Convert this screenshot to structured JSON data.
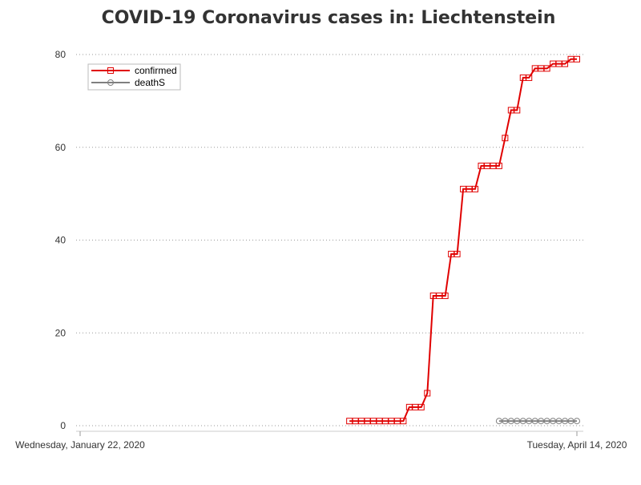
{
  "chart_data": {
    "type": "line",
    "title": "COVID-19 Coronavirus cases in: Liechtenstein",
    "xlabel": "",
    "ylabel": "",
    "x_range": [
      "2020-01-22",
      "2020-04-14"
    ],
    "x_tick_labels": [
      "Wednesday, January 22, 2020",
      "Tuesday, April 14, 2020"
    ],
    "ylim": [
      0,
      80
    ],
    "y_ticks": [
      0,
      20,
      40,
      60,
      80
    ],
    "grid": "horizontal dotted",
    "legend": {
      "placement": "top-left",
      "entries": [
        "confirmed",
        "deathS"
      ]
    },
    "series": [
      {
        "name": "confirmed",
        "color": "#e00000",
        "marker": "square",
        "points": [
          {
            "x": "2020-03-07",
            "y": 1
          },
          {
            "x": "2020-03-08",
            "y": 1
          },
          {
            "x": "2020-03-09",
            "y": 1
          },
          {
            "x": "2020-03-10",
            "y": 1
          },
          {
            "x": "2020-03-11",
            "y": 1
          },
          {
            "x": "2020-03-12",
            "y": 1
          },
          {
            "x": "2020-03-13",
            "y": 1
          },
          {
            "x": "2020-03-14",
            "y": 1
          },
          {
            "x": "2020-03-15",
            "y": 1
          },
          {
            "x": "2020-03-16",
            "y": 1
          },
          {
            "x": "2020-03-17",
            "y": 4
          },
          {
            "x": "2020-03-18",
            "y": 4
          },
          {
            "x": "2020-03-19",
            "y": 4
          },
          {
            "x": "2020-03-20",
            "y": 7
          },
          {
            "x": "2020-03-21",
            "y": 28
          },
          {
            "x": "2020-03-22",
            "y": 28
          },
          {
            "x": "2020-03-23",
            "y": 28
          },
          {
            "x": "2020-03-24",
            "y": 37
          },
          {
            "x": "2020-03-25",
            "y": 37
          },
          {
            "x": "2020-03-26",
            "y": 51
          },
          {
            "x": "2020-03-27",
            "y": 51
          },
          {
            "x": "2020-03-28",
            "y": 51
          },
          {
            "x": "2020-03-29",
            "y": 56
          },
          {
            "x": "2020-03-30",
            "y": 56
          },
          {
            "x": "2020-03-31",
            "y": 56
          },
          {
            "x": "2020-04-01",
            "y": 56
          },
          {
            "x": "2020-04-02",
            "y": 62
          },
          {
            "x": "2020-04-03",
            "y": 68
          },
          {
            "x": "2020-04-04",
            "y": 68
          },
          {
            "x": "2020-04-05",
            "y": 75
          },
          {
            "x": "2020-04-06",
            "y": 75
          },
          {
            "x": "2020-04-07",
            "y": 77
          },
          {
            "x": "2020-04-08",
            "y": 77
          },
          {
            "x": "2020-04-09",
            "y": 77
          },
          {
            "x": "2020-04-10",
            "y": 78
          },
          {
            "x": "2020-04-11",
            "y": 78
          },
          {
            "x": "2020-04-12",
            "y": 78
          },
          {
            "x": "2020-04-13",
            "y": 79
          },
          {
            "x": "2020-04-14",
            "y": 79
          }
        ]
      },
      {
        "name": "deaths",
        "color": "#808080",
        "marker": "circle",
        "points": [
          {
            "x": "2020-04-01",
            "y": 1
          },
          {
            "x": "2020-04-02",
            "y": 1
          },
          {
            "x": "2020-04-03",
            "y": 1
          },
          {
            "x": "2020-04-04",
            "y": 1
          },
          {
            "x": "2020-04-05",
            "y": 1
          },
          {
            "x": "2020-04-06",
            "y": 1
          },
          {
            "x": "2020-04-07",
            "y": 1
          },
          {
            "x": "2020-04-08",
            "y": 1
          },
          {
            "x": "2020-04-09",
            "y": 1
          },
          {
            "x": "2020-04-10",
            "y": 1
          },
          {
            "x": "2020-04-11",
            "y": 1
          },
          {
            "x": "2020-04-12",
            "y": 1
          },
          {
            "x": "2020-04-13",
            "y": 1
          },
          {
            "x": "2020-04-14",
            "y": 1
          }
        ]
      }
    ]
  }
}
